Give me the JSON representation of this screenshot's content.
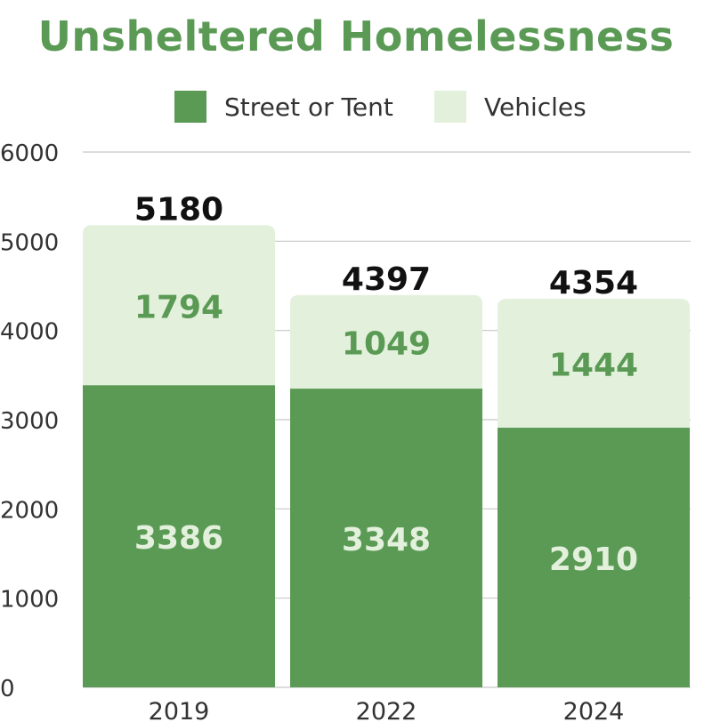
{
  "chart_data": {
    "type": "bar",
    "stacked": true,
    "title": "Unsheltered Homelessness",
    "categories": [
      "2019",
      "2022",
      "2024"
    ],
    "series": [
      {
        "name": "Street or Tent",
        "values": [
          3386,
          3348,
          2910
        ],
        "color": "#5a9a55",
        "label_color": "#e3f0dc"
      },
      {
        "name": "Vehicles",
        "values": [
          1794,
          1049,
          1444
        ],
        "color": "#e3f0dc",
        "label_color": "#5a9a55"
      }
    ],
    "totals": [
      5180,
      4397,
      4354
    ],
    "ylim": [
      0,
      6000
    ],
    "yticks": [
      "0",
      "1000",
      "2000",
      "3000",
      "4000",
      "5000",
      "6000"
    ],
    "grid": true,
    "legend_position": "top"
  }
}
